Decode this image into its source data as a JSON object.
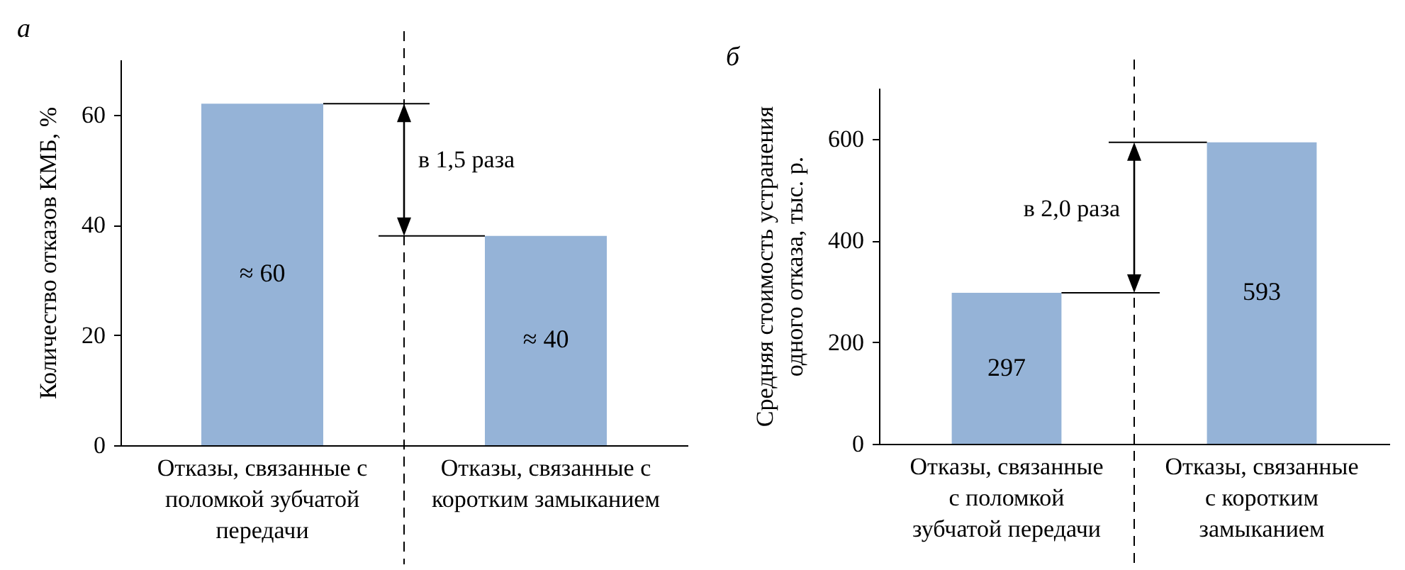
{
  "chart_data": [
    {
      "type": "bar",
      "title": "а",
      "ylabel": "Количество отказов КМБ, %",
      "categories": [
        "Отказы, связанные с поломкой зубчатой передачи",
        "Отказы, связанные с коротким замыканием"
      ],
      "values": [
        62,
        38
      ],
      "color": "#95b3d7",
      "ylim": [
        0,
        70
      ],
      "yticks": [
        0,
        20,
        40,
        60
      ],
      "grid": false,
      "annotations": [
        "в 1,5 раза",
        "≈ 60",
        "≈ 40"
      ]
    },
    {
      "type": "bar",
      "title": "б",
      "ylabel": "Средняя стоимость устранения одного отказа, тыс. р.",
      "categories": [
        "Отказы, связанные с поломкой зубчатой передачи",
        "Отказы, связанные с коротким замыканием"
      ],
      "values": [
        297,
        593
      ],
      "color": "#95b3d7",
      "data_labels": true,
      "ylim": [
        0,
        700
      ],
      "yticks": [
        0,
        200,
        400,
        600
      ],
      "grid": false,
      "annotations": [
        "в 2,0 раза"
      ]
    }
  ]
}
